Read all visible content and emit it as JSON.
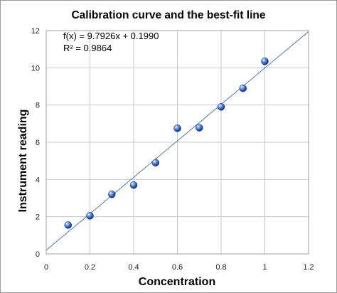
{
  "chart_data": {
    "type": "scatter",
    "title": "Calibration curve and the best-fit line",
    "xlabel": "Concentration",
    "ylabel": "Instrument reading",
    "xlim": [
      0,
      1.2
    ],
    "ylim": [
      0,
      12
    ],
    "xticks": [
      "0",
      "0.2",
      "0.4",
      "0.6",
      "0.8",
      "1",
      "1.2"
    ],
    "yticks": [
      "0",
      "2",
      "4",
      "6",
      "8",
      "10",
      "12"
    ],
    "grid": true,
    "legend": "none",
    "annotations": [
      "f(x) = 9.7926x + 0.1990",
      "R² = 0.9864"
    ],
    "series": [
      {
        "type": "scatter",
        "x": [
          0.1,
          0.2,
          0.3,
          0.4,
          0.5,
          0.6,
          0.7,
          0.8,
          0.9,
          1.0
        ],
        "y": [
          1.55,
          2.05,
          3.2,
          3.7,
          4.9,
          6.75,
          6.78,
          7.9,
          8.9,
          10.35
        ],
        "color": "#1f4fbf"
      },
      {
        "type": "line",
        "slope": 9.7926,
        "intercept": 0.199,
        "color": "#4a7fb5"
      }
    ]
  }
}
